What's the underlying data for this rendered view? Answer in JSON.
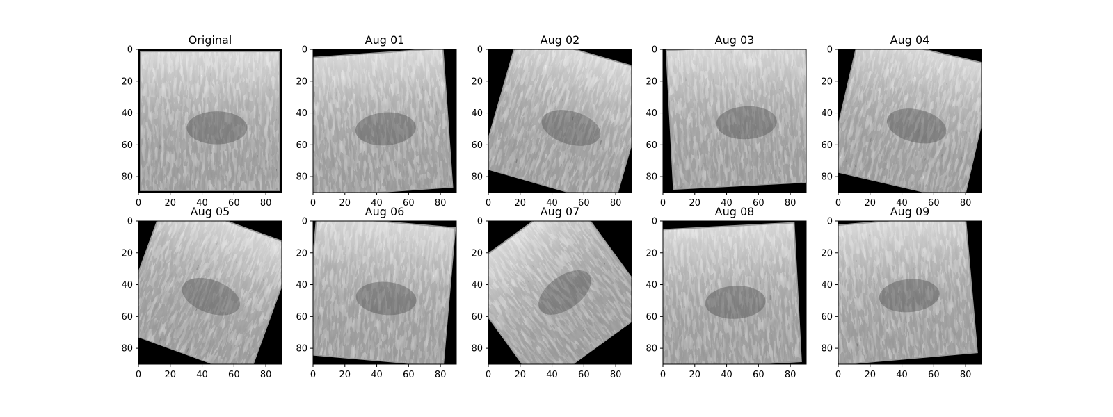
{
  "figure": {
    "panels": [
      {
        "title": "Original",
        "rotation_deg": 0,
        "shift": [
          0,
          0
        ]
      },
      {
        "title": "Aug 01",
        "rotation_deg": -4,
        "shift": [
          -4,
          1
        ]
      },
      {
        "title": "Aug 02",
        "rotation_deg": 16,
        "shift": [
          4,
          -1
        ]
      },
      {
        "title": "Aug 03",
        "rotation_deg": -3,
        "shift": [
          3,
          -3
        ]
      },
      {
        "title": "Aug 04",
        "rotation_deg": 13,
        "shift": [
          1,
          -2
        ]
      },
      {
        "title": "Aug 05",
        "rotation_deg": 20,
        "shift": [
          -2,
          -3
        ]
      },
      {
        "title": "Aug 06",
        "rotation_deg": 5,
        "shift": [
          -3,
          -1
        ]
      },
      {
        "title": "Aug 07",
        "rotation_deg": -36,
        "shift": [
          -3,
          -1
        ]
      },
      {
        "title": "Aug 08",
        "rotation_deg": -3,
        "shift": [
          -4,
          2
        ]
      },
      {
        "title": "Aug 09",
        "rotation_deg": -5,
        "shift": [
          -5,
          -2
        ]
      }
    ],
    "x_ticks": [
      "0",
      "20",
      "40",
      "60",
      "80"
    ],
    "y_ticks": [
      "0",
      "20",
      "40",
      "60",
      "80"
    ],
    "image_extent": 90,
    "colors": {
      "background": "#000000",
      "frame": "#000000"
    }
  }
}
